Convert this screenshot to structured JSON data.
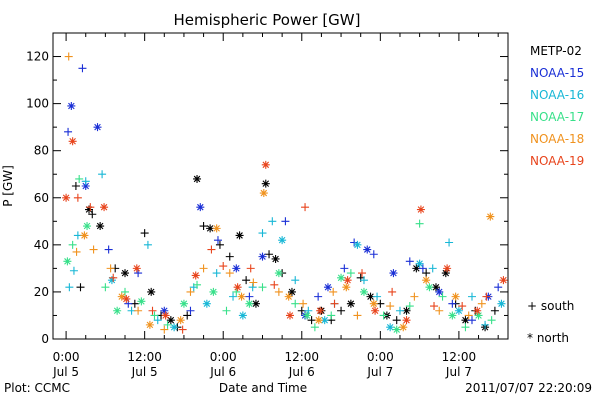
{
  "chart_data": {
    "type": "scatter",
    "title": "Hemispheric Power [GW]",
    "xlabel": "Date and Time",
    "ylabel": "P [GW]",
    "ylim": [
      0,
      130
    ],
    "yticks": [
      0,
      20,
      40,
      60,
      80,
      100,
      120
    ],
    "xlim_hours": [
      -2,
      67.5
    ],
    "x_ticks": [
      {
        "hour": 0,
        "time": "0:00",
        "date": "Jul 5"
      },
      {
        "hour": 12,
        "time": "12:00",
        "date": "Jul 5"
      },
      {
        "hour": 24,
        "time": "0:00",
        "date": "Jul 6"
      },
      {
        "hour": 36,
        "time": "12:00",
        "date": "Jul 6"
      },
      {
        "hour": 48,
        "time": "0:00",
        "date": "Jul 7"
      },
      {
        "hour": 60,
        "time": "12:00",
        "date": "Jul 7"
      }
    ],
    "grid": false,
    "legend_position": "right",
    "symbol_legend": [
      {
        "symbol": "+",
        "label": "south"
      },
      {
        "symbol": "*",
        "label": "north"
      }
    ],
    "series": [
      {
        "name": "METP-02",
        "color": "#000000",
        "points": [
          [
            1.5,
            65,
            "south"
          ],
          [
            2.2,
            22,
            "south"
          ],
          [
            3.5,
            55,
            "north"
          ],
          [
            4,
            53,
            "south"
          ],
          [
            5.2,
            48,
            "north"
          ],
          [
            7.5,
            30,
            "south"
          ],
          [
            9,
            28,
            "north"
          ],
          [
            10.5,
            15,
            "south"
          ],
          [
            12,
            45,
            "south"
          ],
          [
            13,
            20,
            "north"
          ],
          [
            14.5,
            10,
            "south"
          ],
          [
            16,
            8,
            "north"
          ],
          [
            17,
            5,
            "south"
          ],
          [
            18.5,
            10,
            "south"
          ],
          [
            20,
            68,
            "north"
          ],
          [
            21,
            48,
            "south"
          ],
          [
            22,
            47,
            "north"
          ],
          [
            23.5,
            40,
            "south"
          ],
          [
            25,
            35,
            "south"
          ],
          [
            26.5,
            44,
            "north"
          ],
          [
            27.5,
            25,
            "south"
          ],
          [
            29,
            15,
            "north"
          ],
          [
            30.5,
            66,
            "north"
          ],
          [
            31,
            36,
            "south"
          ],
          [
            32,
            34,
            "north"
          ],
          [
            33,
            28,
            "south"
          ],
          [
            34.5,
            20,
            "north"
          ],
          [
            36,
            12,
            "south"
          ],
          [
            37.5,
            8,
            "south"
          ],
          [
            39,
            12,
            "north"
          ],
          [
            40.5,
            8,
            "south"
          ],
          [
            42,
            12,
            "south"
          ],
          [
            43.5,
            15,
            "north"
          ],
          [
            45,
            26,
            "south"
          ],
          [
            46.5,
            18,
            "north"
          ],
          [
            48,
            15,
            "south"
          ],
          [
            49,
            10,
            "north"
          ],
          [
            50.5,
            8,
            "south"
          ],
          [
            52,
            12,
            "north"
          ],
          [
            53.5,
            30,
            "north"
          ],
          [
            55,
            28,
            "south"
          ],
          [
            56.5,
            22,
            "north"
          ],
          [
            58,
            28,
            "north"
          ],
          [
            59.5,
            15,
            "south"
          ],
          [
            61,
            8,
            "north"
          ],
          [
            62.5,
            12,
            "south"
          ],
          [
            64,
            5,
            "north"
          ],
          [
            65.5,
            12,
            "south"
          ]
        ]
      },
      {
        "name": "NOAA-15",
        "color": "#1a2fd6",
        "points": [
          [
            0.3,
            88,
            "south"
          ],
          [
            0.8,
            99,
            "north"
          ],
          [
            2.5,
            115,
            "south"
          ],
          [
            4.8,
            90,
            "north"
          ],
          [
            3,
            65,
            "north"
          ],
          [
            6.5,
            38,
            "south"
          ],
          [
            9.5,
            15,
            "south"
          ],
          [
            11,
            28,
            "south"
          ],
          [
            15,
            12,
            "north"
          ],
          [
            19,
            12,
            "south"
          ],
          [
            20.5,
            56,
            "north"
          ],
          [
            23.2,
            42,
            "south"
          ],
          [
            26,
            30,
            "north"
          ],
          [
            28,
            18,
            "south"
          ],
          [
            30,
            35,
            "north"
          ],
          [
            33.5,
            50,
            "south"
          ],
          [
            36.5,
            10,
            "north"
          ],
          [
            38.5,
            18,
            "south"
          ],
          [
            40,
            22,
            "north"
          ],
          [
            42.5,
            30,
            "south"
          ],
          [
            44,
            41,
            "south"
          ],
          [
            46,
            38,
            "north"
          ],
          [
            47,
            36,
            "south"
          ],
          [
            50,
            28,
            "north"
          ],
          [
            52.5,
            33,
            "south"
          ],
          [
            54.5,
            30,
            "south"
          ],
          [
            57,
            20,
            "north"
          ],
          [
            59,
            15,
            "south"
          ],
          [
            62,
            8,
            "south"
          ],
          [
            64.5,
            18,
            "north"
          ],
          [
            66,
            22,
            "south"
          ]
        ]
      },
      {
        "name": "NOAA-16",
        "color": "#17b7d6",
        "points": [
          [
            0.5,
            22,
            "south"
          ],
          [
            1.2,
            29,
            "south"
          ],
          [
            1.8,
            44,
            "south"
          ],
          [
            3,
            67,
            "south"
          ],
          [
            5.5,
            70,
            "south"
          ],
          [
            7,
            25,
            "north"
          ],
          [
            10,
            12,
            "south"
          ],
          [
            12.5,
            40,
            "south"
          ],
          [
            14,
            8,
            "south"
          ],
          [
            16.5,
            5,
            "north"
          ],
          [
            19.5,
            22,
            "south"
          ],
          [
            21.5,
            15,
            "north"
          ],
          [
            23,
            28,
            "south"
          ],
          [
            25.5,
            18,
            "south"
          ],
          [
            27,
            10,
            "north"
          ],
          [
            28.5,
            22,
            "south"
          ],
          [
            30,
            45,
            "south"
          ],
          [
            31.5,
            50,
            "south"
          ],
          [
            33,
            42,
            "north"
          ],
          [
            35,
            25,
            "south"
          ],
          [
            37,
            12,
            "south"
          ],
          [
            39.5,
            8,
            "north"
          ],
          [
            41,
            15,
            "south"
          ],
          [
            44.5,
            40,
            "north"
          ],
          [
            45.5,
            25,
            "south"
          ],
          [
            47.5,
            18,
            "south"
          ],
          [
            49.5,
            5,
            "north"
          ],
          [
            51,
            12,
            "south"
          ],
          [
            54,
            32,
            "north"
          ],
          [
            56,
            30,
            "south"
          ],
          [
            58.5,
            41,
            "south"
          ],
          [
            60,
            12,
            "north"
          ],
          [
            62,
            18,
            "south"
          ],
          [
            64,
            6,
            "south"
          ],
          [
            66.5,
            15,
            "north"
          ]
        ]
      },
      {
        "name": "NOAA-17",
        "color": "#38e08a",
        "points": [
          [
            0.2,
            33,
            "north"
          ],
          [
            1,
            40,
            "south"
          ],
          [
            2,
            68,
            "south"
          ],
          [
            3.2,
            48,
            "north"
          ],
          [
            6,
            22,
            "south"
          ],
          [
            7.8,
            12,
            "north"
          ],
          [
            9,
            20,
            "south"
          ],
          [
            11.5,
            16,
            "north"
          ],
          [
            13.5,
            10,
            "south"
          ],
          [
            15.5,
            6,
            "south"
          ],
          [
            18,
            15,
            "north"
          ],
          [
            20,
            23,
            "south"
          ],
          [
            22.5,
            20,
            "north"
          ],
          [
            24.5,
            12,
            "south"
          ],
          [
            26,
            20,
            "south"
          ],
          [
            28,
            15,
            "north"
          ],
          [
            30,
            22,
            "south"
          ],
          [
            32.5,
            28,
            "north"
          ],
          [
            35,
            15,
            "south"
          ],
          [
            36.8,
            10,
            "north"
          ],
          [
            38,
            5,
            "south"
          ],
          [
            40.5,
            10,
            "south"
          ],
          [
            42,
            26,
            "north"
          ],
          [
            43.5,
            28,
            "south"
          ],
          [
            45.5,
            20,
            "north"
          ],
          [
            48.5,
            10,
            "south"
          ],
          [
            50.5,
            4,
            "north"
          ],
          [
            52.5,
            14,
            "south"
          ],
          [
            54,
            49,
            "south"
          ],
          [
            55.5,
            22,
            "north"
          ],
          [
            57.5,
            18,
            "south"
          ],
          [
            59,
            10,
            "north"
          ],
          [
            61,
            5,
            "south"
          ],
          [
            63,
            10,
            "north"
          ],
          [
            65,
            8,
            "south"
          ]
        ]
      },
      {
        "name": "NOAA-18",
        "color": "#f0921e",
        "points": [
          [
            0.4,
            120,
            "south"
          ],
          [
            1.6,
            37,
            "south"
          ],
          [
            2.8,
            44,
            "north"
          ],
          [
            4.2,
            38,
            "south"
          ],
          [
            6.8,
            30,
            "south"
          ],
          [
            8.5,
            18,
            "north"
          ],
          [
            11,
            12,
            "south"
          ],
          [
            12.8,
            6,
            "north"
          ],
          [
            15,
            4,
            "south"
          ],
          [
            17.5,
            8,
            "north"
          ],
          [
            19,
            20,
            "south"
          ],
          [
            21,
            30,
            "south"
          ],
          [
            23,
            47,
            "north"
          ],
          [
            25,
            28,
            "south"
          ],
          [
            26.8,
            18,
            "north"
          ],
          [
            28.6,
            24,
            "south"
          ],
          [
            30.2,
            62,
            "north"
          ],
          [
            32.5,
            20,
            "south"
          ],
          [
            34,
            18,
            "north"
          ],
          [
            36.2,
            15,
            "south"
          ],
          [
            38.6,
            8,
            "north"
          ],
          [
            40.8,
            20,
            "south"
          ],
          [
            42.8,
            22,
            "north"
          ],
          [
            44.5,
            10,
            "south"
          ],
          [
            47,
            15,
            "north"
          ],
          [
            49.5,
            14,
            "south"
          ],
          [
            51.5,
            5,
            "north"
          ],
          [
            53.2,
            18,
            "south"
          ],
          [
            55,
            25,
            "north"
          ],
          [
            57,
            12,
            "south"
          ],
          [
            59.5,
            18,
            "north"
          ],
          [
            61.5,
            10,
            "south"
          ],
          [
            63.5,
            15,
            "south"
          ],
          [
            64.8,
            52,
            "north"
          ]
        ]
      },
      {
        "name": "NOAA-19",
        "color": "#e8441c",
        "points": [
          [
            0,
            60,
            "north"
          ],
          [
            1,
            84,
            "north"
          ],
          [
            1.8,
            60,
            "south"
          ],
          [
            3.7,
            56,
            "south"
          ],
          [
            5.8,
            56,
            "north"
          ],
          [
            7.2,
            26,
            "south"
          ],
          [
            9.2,
            17,
            "north"
          ],
          [
            10.8,
            30,
            "north"
          ],
          [
            13.2,
            12,
            "south"
          ],
          [
            15.2,
            10,
            "north"
          ],
          [
            17.8,
            4,
            "south"
          ],
          [
            19.8,
            27,
            "north"
          ],
          [
            22.2,
            38,
            "south"
          ],
          [
            24,
            31,
            "south"
          ],
          [
            26.2,
            22,
            "north"
          ],
          [
            28.2,
            30,
            "south"
          ],
          [
            30.5,
            74,
            "north"
          ],
          [
            31.8,
            23,
            "south"
          ],
          [
            34.2,
            10,
            "north"
          ],
          [
            36.5,
            56,
            "south"
          ],
          [
            38.8,
            12,
            "north"
          ],
          [
            41,
            15,
            "south"
          ],
          [
            43,
            25,
            "north"
          ],
          [
            45.2,
            28,
            "south"
          ],
          [
            47.2,
            12,
            "north"
          ],
          [
            49.8,
            20,
            "south"
          ],
          [
            52,
            8,
            "north"
          ],
          [
            54.2,
            55,
            "north"
          ],
          [
            56.2,
            14,
            "south"
          ],
          [
            58.2,
            30,
            "north"
          ],
          [
            60.5,
            14,
            "south"
          ],
          [
            62.8,
            12,
            "north"
          ],
          [
            64.2,
            18,
            "south"
          ],
          [
            66.8,
            25,
            "north"
          ]
        ]
      }
    ]
  },
  "footer": {
    "plot_credit": "Plot: CCMC",
    "timestamp": "2011/07/07 22:20:09"
  }
}
